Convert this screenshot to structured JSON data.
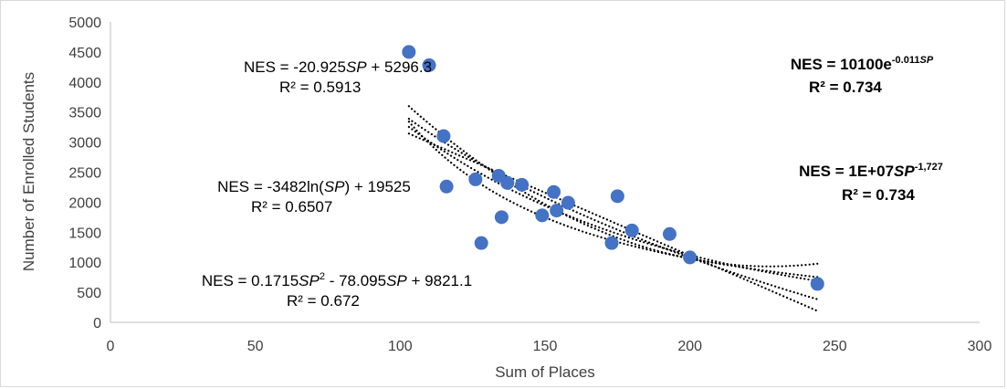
{
  "chart_data": {
    "type": "scatter",
    "title": "",
    "xlabel": "Sum of Places",
    "ylabel": "Number of Enrolled Students",
    "xlim": [
      0,
      300
    ],
    "ylim": [
      0,
      5000
    ],
    "x_ticks": [
      "0",
      "50",
      "100",
      "150",
      "200",
      "250",
      "300"
    ],
    "y_ticks": [
      "0",
      "500",
      "1000",
      "1500",
      "2000",
      "2500",
      "3000",
      "3500",
      "4000",
      "4500",
      "5000"
    ],
    "grid": false,
    "marker_color": "#4472c4",
    "points": [
      [
        103,
        4500
      ],
      [
        110,
        4280
      ],
      [
        115,
        3100
      ],
      [
        116,
        2260
      ],
      [
        126,
        2380
      ],
      [
        128,
        1320
      ],
      [
        134,
        2440
      ],
      [
        135,
        1750
      ],
      [
        137,
        2320
      ],
      [
        142,
        2290
      ],
      [
        149,
        1780
      ],
      [
        153,
        2170
      ],
      [
        154,
        1860
      ],
      [
        158,
        1990
      ],
      [
        173,
        1320
      ],
      [
        175,
        2100
      ],
      [
        180,
        1530
      ],
      [
        193,
        1470
      ],
      [
        200,
        1080
      ],
      [
        244,
        640
      ]
    ],
    "trendline_range": [
      103,
      244
    ],
    "trendlines": [
      {
        "type": "linear",
        "a": -20.925,
        "b": 5296.3
      },
      {
        "type": "log",
        "a": -3482,
        "b": 19525
      },
      {
        "type": "poly2",
        "a": 0.1715,
        "b": -78.095,
        "c": 9821.1
      },
      {
        "type": "exp",
        "a": 10100,
        "k": -0.011
      },
      {
        "type": "power",
        "a": 10000000,
        "k": -1.727
      }
    ],
    "annotations": {
      "linear": {
        "eq_prefix": "NES = -20.925",
        "var": "SP",
        "eq_suffix": " + 5296.3",
        "r2": "R² = 0.5913"
      },
      "log": {
        "eq_prefix": "NES = -3482ln(",
        "var": "SP",
        "eq_suffix": ") + 19525",
        "r2": "R² = 0.6507"
      },
      "poly": {
        "p1": "NES = 0.1715",
        "var1": "SP",
        "sup": "2",
        "p2": " - 78.095",
        "var2": "SP",
        "p3": " + 9821.1",
        "r2": "R² = 0.672"
      },
      "exp": {
        "base": "NES = 10100e",
        "sup": "-0.011",
        "sup_var": "SP",
        "r2": "R² = 0.734"
      },
      "power": {
        "base": "NES = 1E+07",
        "var": "SP",
        "sup": "-1,727",
        "r2": "R² = 0.734"
      }
    }
  }
}
